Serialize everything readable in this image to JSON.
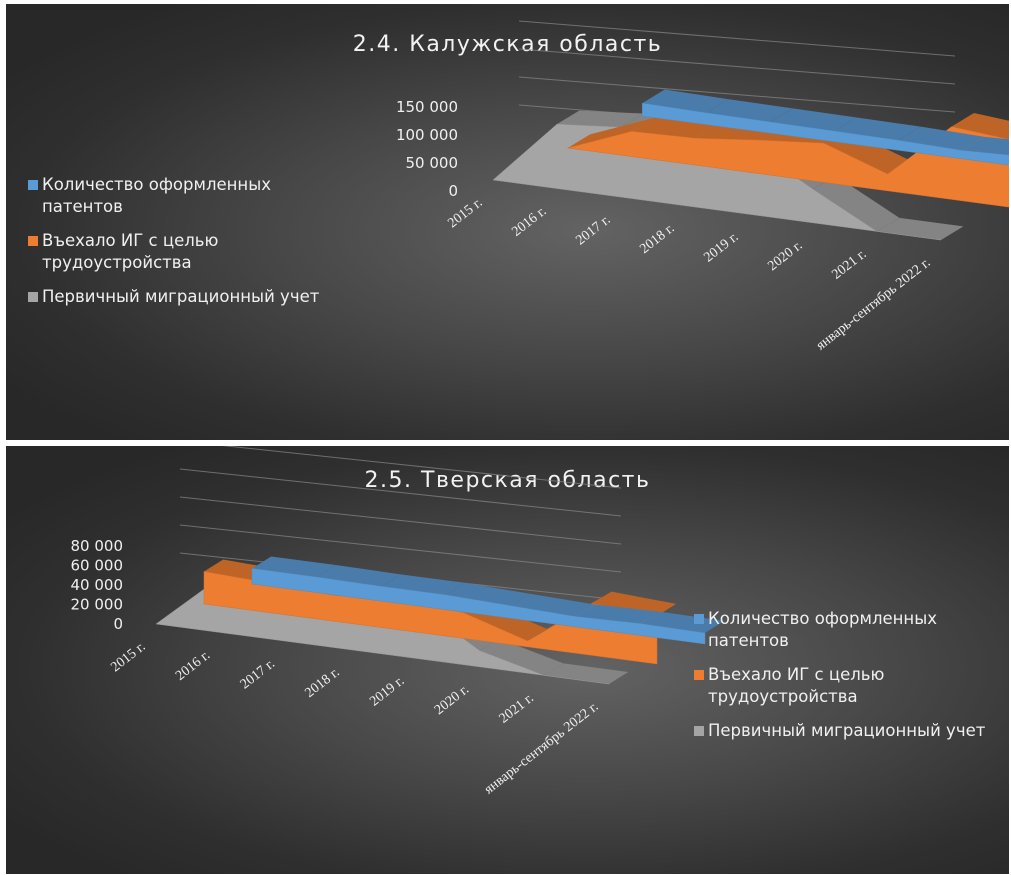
{
  "colors": {
    "patents": "#5b9bd5",
    "entered": "#ed7d31",
    "migration": "#a5a5a5"
  },
  "legend_labels": [
    "Количество оформленных патентов",
    "Въехало ИГ с целью трудоустройства",
    "Первичный миграционный учет"
  ],
  "chart_data": [
    {
      "type": "area",
      "title": "2.4. Калужская область",
      "categories": [
        "2015 г.",
        "2016 г.",
        "2017 г.",
        "2018 г.",
        "2019 г.",
        "2020 г.",
        "2021 г.",
        "январь-сентябрь 2022 г."
      ],
      "y_ticks": [
        "150 000",
        "100 000",
        "50 000",
        "0"
      ],
      "ylim": [
        0,
        150000
      ],
      "legend_position": "left",
      "grid": true,
      "series": [
        {
          "name": "Количество оформленных патентов",
          "values": [
            23000,
            21000,
            20000,
            19000,
            18000,
            15000,
            19000,
            17000
          ]
        },
        {
          "name": "Въехало ИГ с целью трудоустройства",
          "values": [
            0,
            45000,
            48000,
            60000,
            70000,
            30000,
            130000,
            120000
          ]
        },
        {
          "name": "Первичный миграционный учет",
          "values": [
            0,
            115000,
            125000,
            140000,
            125000,
            60000,
            0,
            0
          ]
        }
      ]
    },
    {
      "type": "area",
      "title": "2.5. Тверская область",
      "categories": [
        "2015 г.",
        "2016 г.",
        "2017 г.",
        "2018 г.",
        "2019 г.",
        "2020 г.",
        "2021 г.",
        "январь-сентябрь 2022 г."
      ],
      "y_ticks": [
        "80 000",
        "60 000",
        "40 000",
        "20 000",
        "0"
      ],
      "ylim": [
        0,
        80000
      ],
      "legend_position": "right",
      "grid": true,
      "series": [
        {
          "name": "Количество оформленных патентов",
          "values": [
            21000,
            21000,
            20000,
            20000,
            17000,
            14000,
            16000,
            15000
          ]
        },
        {
          "name": "Въехало ИГ с целью трудоустройства",
          "values": [
            44000,
            40000,
            35000,
            40000,
            35000,
            8000,
            70000,
            65000
          ]
        },
        {
          "name": "Первичный миграционный учет",
          "values": [
            0,
            75000,
            72000,
            68000,
            75000,
            22000,
            0,
            0
          ]
        }
      ]
    }
  ]
}
